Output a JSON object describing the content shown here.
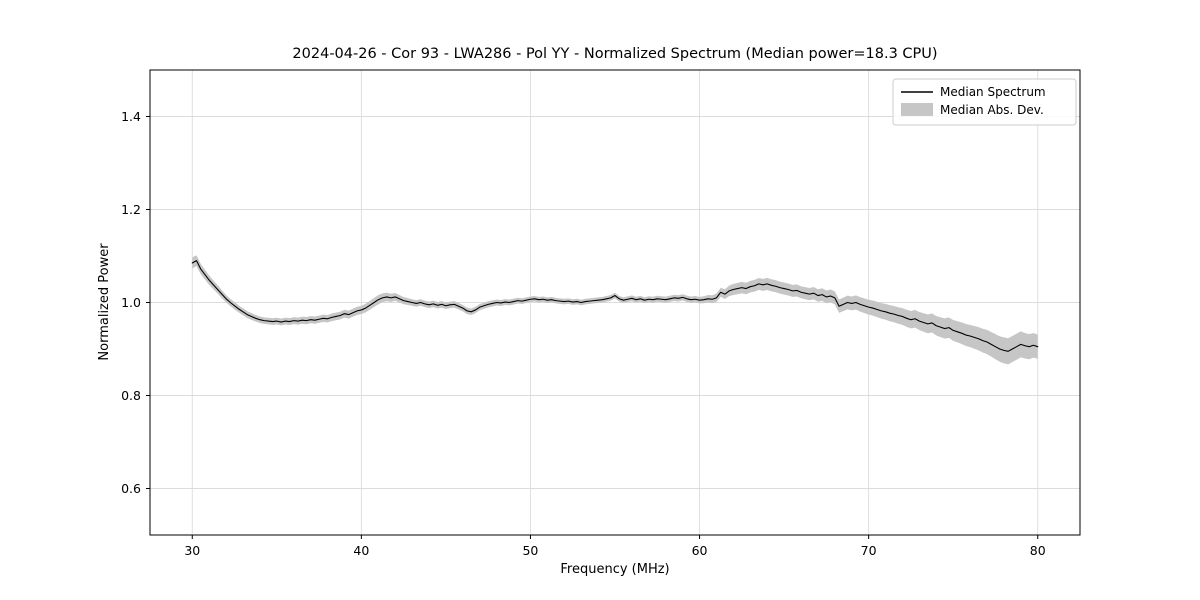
{
  "chart_data": {
    "type": "line",
    "title": "2024-04-26 - Cor 93 - LWA286 - Pol YY - Normalized Spectrum (Median power=18.3 CPU)",
    "xlabel": "Frequency (MHz)",
    "ylabel": "Normalized Power",
    "xlim": [
      27.5,
      82.5
    ],
    "ylim": [
      0.5,
      1.5
    ],
    "xticks": [
      30,
      40,
      50,
      60,
      70,
      80
    ],
    "xtick_labels": [
      "30",
      "40",
      "50",
      "60",
      "70",
      "80"
    ],
    "yticks": [
      0.6,
      0.8,
      1.0,
      1.2,
      1.4
    ],
    "ytick_labels": [
      "0.6",
      "0.8",
      "1.0",
      "1.2",
      "1.4"
    ],
    "grid": true,
    "colors": {
      "line": "#000000",
      "band": "#c6c6c6",
      "grid": "#dcdcdc",
      "spine": "#000000",
      "legend_border": "#cccccc"
    },
    "legend": {
      "position": "upper right",
      "entries": [
        {
          "label": "Median Spectrum",
          "type": "line",
          "color": "#000000"
        },
        {
          "label": "Median Abs. Dev.",
          "type": "patch",
          "color": "#c6c6c6"
        }
      ]
    },
    "series": {
      "name": "Median Spectrum",
      "x_start": 30.0,
      "x_step": 0.25,
      "values": [
        1.085,
        1.09,
        1.072,
        1.06,
        1.048,
        1.038,
        1.028,
        1.018,
        1.008,
        1.0,
        0.993,
        0.986,
        0.98,
        0.974,
        0.97,
        0.966,
        0.963,
        0.961,
        0.96,
        0.959,
        0.96,
        0.958,
        0.96,
        0.959,
        0.961,
        0.96,
        0.962,
        0.961,
        0.963,
        0.962,
        0.964,
        0.966,
        0.965,
        0.968,
        0.97,
        0.972,
        0.976,
        0.974,
        0.978,
        0.982,
        0.984,
        0.988,
        0.994,
        1.0,
        1.006,
        1.01,
        1.012,
        1.01,
        1.012,
        1.008,
        1.004,
        1.002,
        1.0,
        0.998,
        1.0,
        0.997,
        0.995,
        0.997,
        0.994,
        0.996,
        0.993,
        0.995,
        0.996,
        0.992,
        0.988,
        0.982,
        0.98,
        0.984,
        0.99,
        0.993,
        0.996,
        0.998,
        1.0,
        0.999,
        1.001,
        1.0,
        1.002,
        1.004,
        1.003,
        1.005,
        1.007,
        1.008,
        1.006,
        1.007,
        1.005,
        1.006,
        1.004,
        1.003,
        1.002,
        1.003,
        1.001,
        1.002,
        1.0,
        1.002,
        1.003,
        1.004,
        1.005,
        1.006,
        1.008,
        1.01,
        1.015,
        1.008,
        1.005,
        1.007,
        1.009,
        1.006,
        1.008,
        1.005,
        1.007,
        1.006,
        1.008,
        1.007,
        1.006,
        1.008,
        1.01,
        1.009,
        1.011,
        1.008,
        1.006,
        1.007,
        1.005,
        1.006,
        1.008,
        1.007,
        1.01,
        1.022,
        1.018,
        1.025,
        1.028,
        1.03,
        1.032,
        1.03,
        1.034,
        1.036,
        1.04,
        1.038,
        1.04,
        1.037,
        1.035,
        1.032,
        1.03,
        1.028,
        1.025,
        1.026,
        1.022,
        1.02,
        1.018,
        1.02,
        1.015,
        1.017,
        1.012,
        1.014,
        1.01,
        0.992,
        0.996,
        1.0,
        0.998,
        1.0,
        0.996,
        0.993,
        0.99,
        0.988,
        0.985,
        0.982,
        0.98,
        0.977,
        0.975,
        0.972,
        0.97,
        0.966,
        0.963,
        0.965,
        0.96,
        0.957,
        0.954,
        0.956,
        0.95,
        0.947,
        0.944,
        0.946,
        0.94,
        0.937,
        0.934,
        0.93,
        0.928,
        0.925,
        0.922,
        0.918,
        0.915,
        0.91,
        0.905,
        0.9,
        0.897,
        0.895,
        0.9,
        0.905,
        0.91,
        0.907,
        0.905,
        0.908,
        0.905
      ],
      "mad_control_points": [
        [
          30,
          0.012
        ],
        [
          31,
          0.01
        ],
        [
          32,
          0.008
        ],
        [
          34,
          0.007
        ],
        [
          38,
          0.008
        ],
        [
          40,
          0.009
        ],
        [
          41,
          0.01
        ],
        [
          43,
          0.007
        ],
        [
          46,
          0.007
        ],
        [
          50,
          0.006
        ],
        [
          55,
          0.006
        ],
        [
          60,
          0.007
        ],
        [
          61,
          0.009
        ],
        [
          62,
          0.012
        ],
        [
          64,
          0.013
        ],
        [
          66,
          0.013
        ],
        [
          68,
          0.014
        ],
        [
          70,
          0.016
        ],
        [
          72,
          0.018
        ],
        [
          74,
          0.021
        ],
        [
          76,
          0.024
        ],
        [
          78,
          0.028
        ],
        [
          79,
          0.028
        ],
        [
          80,
          0.026
        ]
      ]
    }
  }
}
